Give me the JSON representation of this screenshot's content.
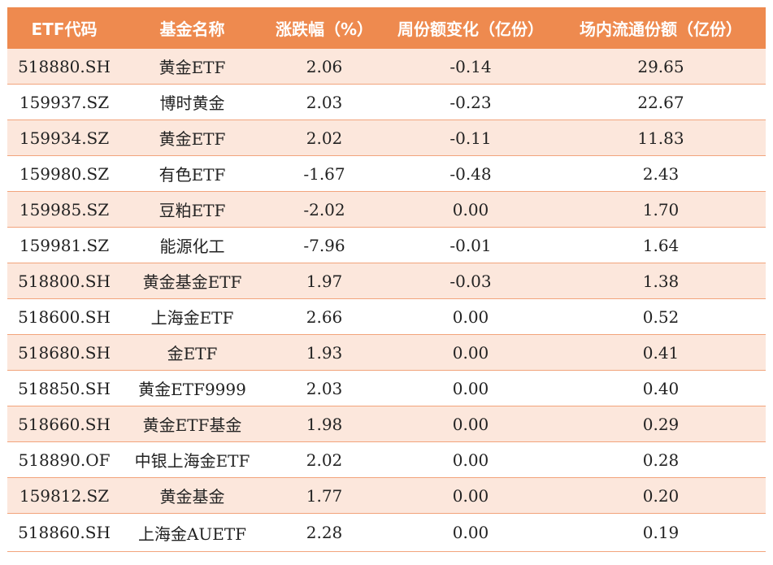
{
  "table": {
    "headers": [
      "ETF代码",
      "基金名称",
      "涨跌幅（%）",
      "周份额变化（亿份）",
      "场内流通份额（亿份）"
    ],
    "rows": [
      [
        "518880.SH",
        "黄金ETF",
        "2.06",
        "-0.14",
        "29.65"
      ],
      [
        "159937.SZ",
        "博时黄金",
        "2.03",
        "-0.23",
        "22.67"
      ],
      [
        "159934.SZ",
        "黄金ETF",
        "2.02",
        "-0.11",
        "11.83"
      ],
      [
        "159980.SZ",
        "有色ETF",
        "-1.67",
        "-0.48",
        "2.43"
      ],
      [
        "159985.SZ",
        "豆粕ETF",
        "-2.02",
        "0.00",
        "1.70"
      ],
      [
        "159981.SZ",
        "能源化工",
        "-7.96",
        "-0.01",
        "1.64"
      ],
      [
        "518800.SH",
        "黄金基金ETF",
        "1.97",
        "-0.03",
        "1.38"
      ],
      [
        "518600.SH",
        "上海金ETF",
        "2.66",
        "0.00",
        "0.52"
      ],
      [
        "518680.SH",
        "金ETF",
        "1.93",
        "0.00",
        "0.41"
      ],
      [
        "518850.SH",
        "黄金ETF9999",
        "2.03",
        "0.00",
        "0.40"
      ],
      [
        "518660.SH",
        "黄金ETF基金",
        "1.98",
        "0.00",
        "0.29"
      ],
      [
        "518890.OF",
        "中银上海金ETF",
        "2.02",
        "0.00",
        "0.28"
      ],
      [
        "159812.SZ",
        "黄金基金",
        "1.77",
        "0.00",
        "0.20"
      ],
      [
        "518860.SH",
        "上海金AUETF",
        "2.28",
        "0.00",
        "0.19"
      ]
    ]
  },
  "colors": {
    "header_bg": "#ee8a4f",
    "stripe_bg": "#fce7dc",
    "border": "#f2a47c"
  }
}
